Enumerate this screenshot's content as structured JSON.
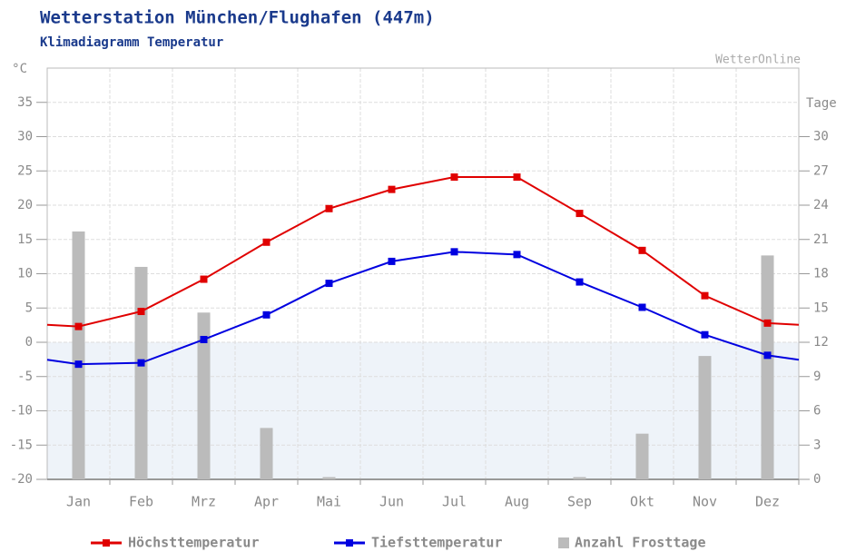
{
  "chart_data": {
    "type": "line",
    "title": "Wetterstation München/Flughafen (447m)",
    "subtitle": "Klimadiagramm Temperatur",
    "source": "WetterOnline",
    "y_unit": "°C",
    "y2_unit": "Tage",
    "categories": [
      "Jan",
      "Feb",
      "Mrz",
      "Apr",
      "Mai",
      "Jun",
      "Jul",
      "Aug",
      "Sep",
      "Okt",
      "Nov",
      "Dez"
    ],
    "series": [
      {
        "name": "Höchsttemperatur",
        "type": "line",
        "color": "#e00000",
        "values": [
          2.3,
          4.5,
          9.2,
          14.6,
          19.5,
          22.3,
          24.1,
          24.1,
          18.8,
          13.4,
          6.8,
          2.8
        ]
      },
      {
        "name": "Tiefsttemperatur",
        "type": "line",
        "color": "#0000e0",
        "values": [
          -3.2,
          -3.0,
          0.4,
          4.0,
          8.6,
          11.8,
          13.2,
          12.8,
          8.8,
          5.1,
          1.1,
          -1.9
        ]
      },
      {
        "name": "Anzahl Frosttage",
        "type": "bar",
        "axis": "y2",
        "color": "#bbbbbb",
        "values": [
          21.7,
          18.6,
          14.6,
          4.5,
          0.2,
          0,
          0,
          0,
          0.2,
          4.0,
          10.8,
          19.6
        ]
      }
    ],
    "ylim": [
      -20,
      40
    ],
    "yticks": [
      -20,
      -15,
      -10,
      -5,
      0,
      5,
      10,
      15,
      20,
      25,
      30,
      35
    ],
    "y2lim": [
      0,
      36
    ],
    "y2ticks": [
      0,
      3,
      6,
      9,
      12,
      15,
      18,
      21,
      24,
      27,
      30
    ],
    "grid": true
  }
}
